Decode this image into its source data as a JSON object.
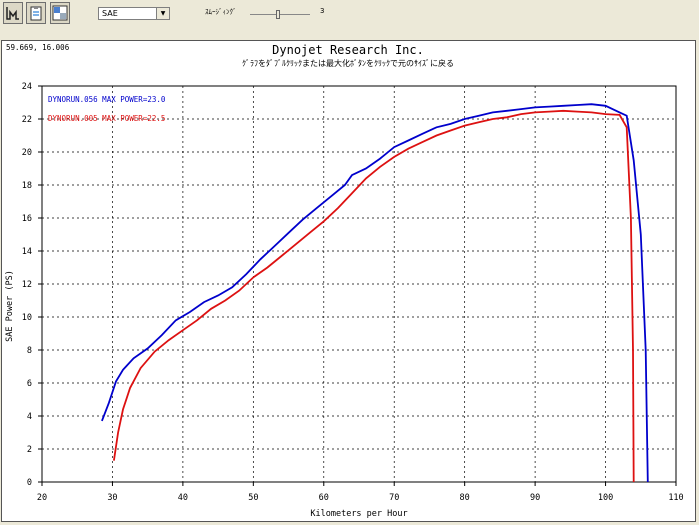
{
  "toolbar": {
    "buttons": [
      "dyno-icon",
      "clipboard-icon",
      "layout-icon"
    ],
    "standard_value": "SAE",
    "smoothing_label": "ｽﾑｰｼﾞｨﾝｸﾞ",
    "smoothing_value": "3"
  },
  "graph": {
    "cursor_readout": "59.669, 16.006",
    "title": "Dynojet  Research  Inc.",
    "subtitle": "ｸﾞﾗﾌをﾀﾞﾌﾞﾙｸﾘｯｸまたは最大化ﾎﾞﾀﾝをｸﾘｯｸで元のｻｲｽﾞに戻る"
  },
  "chart_data": {
    "type": "line",
    "xlabel": "Kilometers per Hour",
    "ylabel": "SAE Power (PS)",
    "xlim": [
      20,
      110
    ],
    "ylim": [
      0,
      24
    ],
    "x_ticks": [
      20,
      30,
      40,
      50,
      60,
      70,
      80,
      90,
      100,
      110
    ],
    "y_ticks": [
      0,
      2,
      4,
      6,
      8,
      10,
      12,
      14,
      16,
      18,
      20,
      22,
      24
    ],
    "grid": true,
    "legend_placement": "top-left",
    "series": [
      {
        "name": "DYNORUN.056  MAX POWER=23.0",
        "color": "#0000cc",
        "points": [
          [
            28.5,
            3.7
          ],
          [
            29.5,
            4.8
          ],
          [
            30.5,
            6.1
          ],
          [
            31.5,
            6.8
          ],
          [
            33,
            7.5
          ],
          [
            35,
            8.1
          ],
          [
            37,
            8.9
          ],
          [
            39,
            9.8
          ],
          [
            41,
            10.3
          ],
          [
            43,
            10.9
          ],
          [
            45,
            11.3
          ],
          [
            47,
            11.8
          ],
          [
            49,
            12.6
          ],
          [
            51,
            13.5
          ],
          [
            53,
            14.3
          ],
          [
            55,
            15.1
          ],
          [
            57,
            15.9
          ],
          [
            59,
            16.6
          ],
          [
            61,
            17.3
          ],
          [
            63,
            18.0
          ],
          [
            64,
            18.6
          ],
          [
            66,
            19.0
          ],
          [
            68,
            19.6
          ],
          [
            70,
            20.3
          ],
          [
            72,
            20.7
          ],
          [
            74,
            21.1
          ],
          [
            76,
            21.5
          ],
          [
            78,
            21.7
          ],
          [
            80,
            22.0
          ],
          [
            82,
            22.2
          ],
          [
            84,
            22.4
          ],
          [
            86,
            22.5
          ],
          [
            88,
            22.6
          ],
          [
            90,
            22.7
          ],
          [
            92,
            22.75
          ],
          [
            94,
            22.8
          ],
          [
            96,
            22.85
          ],
          [
            98,
            22.9
          ],
          [
            100,
            22.8
          ],
          [
            102,
            22.4
          ],
          [
            103,
            22.2
          ],
          [
            104,
            19.5
          ],
          [
            105,
            15.0
          ],
          [
            105.7,
            8.0
          ],
          [
            106,
            0
          ]
        ]
      },
      {
        "name": "DYNORUN.005  MAX POWER=22.5",
        "color": "#dd1111",
        "points": [
          [
            30.2,
            1.3
          ],
          [
            30.8,
            3.0
          ],
          [
            31.5,
            4.4
          ],
          [
            32.5,
            5.7
          ],
          [
            34,
            6.9
          ],
          [
            36,
            7.9
          ],
          [
            38,
            8.6
          ],
          [
            40,
            9.2
          ],
          [
            42,
            9.8
          ],
          [
            44,
            10.5
          ],
          [
            46,
            11.0
          ],
          [
            48,
            11.6
          ],
          [
            50,
            12.4
          ],
          [
            52,
            13.0
          ],
          [
            54,
            13.7
          ],
          [
            56,
            14.4
          ],
          [
            58,
            15.1
          ],
          [
            60,
            15.8
          ],
          [
            62,
            16.6
          ],
          [
            64,
            17.5
          ],
          [
            66,
            18.4
          ],
          [
            68,
            19.1
          ],
          [
            70,
            19.7
          ],
          [
            72,
            20.2
          ],
          [
            74,
            20.6
          ],
          [
            76,
            21.0
          ],
          [
            78,
            21.3
          ],
          [
            80,
            21.6
          ],
          [
            82,
            21.8
          ],
          [
            84,
            22.0
          ],
          [
            86,
            22.1
          ],
          [
            88,
            22.3
          ],
          [
            90,
            22.4
          ],
          [
            92,
            22.45
          ],
          [
            94,
            22.5
          ],
          [
            96,
            22.45
          ],
          [
            98,
            22.4
          ],
          [
            100,
            22.3
          ],
          [
            102,
            22.25
          ],
          [
            103,
            21.5
          ],
          [
            103.6,
            16.0
          ],
          [
            103.9,
            8.0
          ],
          [
            104,
            0
          ]
        ]
      }
    ]
  }
}
